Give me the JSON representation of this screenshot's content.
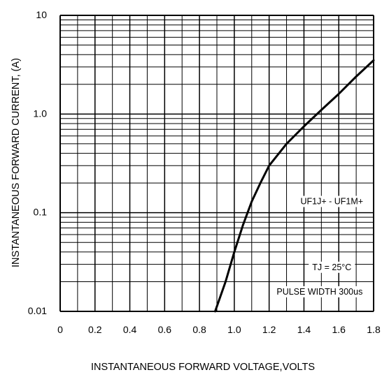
{
  "chart_data": {
    "type": "line",
    "title": "",
    "xlabel": "INSTANTANEOUS FORWARD VOLTAGE,VOLTS",
    "ylabel": "INSTANTANEOUS FORWARD CURRENT, (A)",
    "xlim": [
      0,
      1.8
    ],
    "ylim": [
      0.01,
      10
    ],
    "yscale": "log",
    "grid": true,
    "x_ticks": [
      "0",
      "0.2",
      "0.4",
      "0.6",
      "0.8",
      "1.0",
      "1.2",
      "1.4",
      "1.6",
      "1.8"
    ],
    "x_tick_values": [
      0,
      0.2,
      0.4,
      0.6,
      0.8,
      1.0,
      1.2,
      1.4,
      1.6,
      1.8
    ],
    "y_ticks": [
      "0.01",
      "0.1",
      "1.0",
      "10"
    ],
    "y_tick_values": [
      0.01,
      0.1,
      1.0,
      10
    ],
    "series": [
      {
        "points": [
          [
            0.89,
            0.01
          ],
          [
            0.95,
            0.02
          ],
          [
            1.0,
            0.04
          ],
          [
            1.05,
            0.075
          ],
          [
            1.1,
            0.13
          ],
          [
            1.15,
            0.2
          ],
          [
            1.2,
            0.3
          ],
          [
            1.3,
            0.5
          ],
          [
            1.4,
            0.75
          ],
          [
            1.5,
            1.1
          ],
          [
            1.6,
            1.6
          ],
          [
            1.7,
            2.4
          ],
          [
            1.8,
            3.5
          ]
        ]
      }
    ],
    "annotations": [
      {
        "text": "UF1J+ - UF1M+",
        "x": 1.56,
        "y": 0.13
      },
      {
        "text": "TJ = 25°C",
        "x": 1.56,
        "y": 0.028
      },
      {
        "text": "PULSE WIDTH 300us",
        "x": 1.49,
        "y": 0.0158
      }
    ]
  }
}
